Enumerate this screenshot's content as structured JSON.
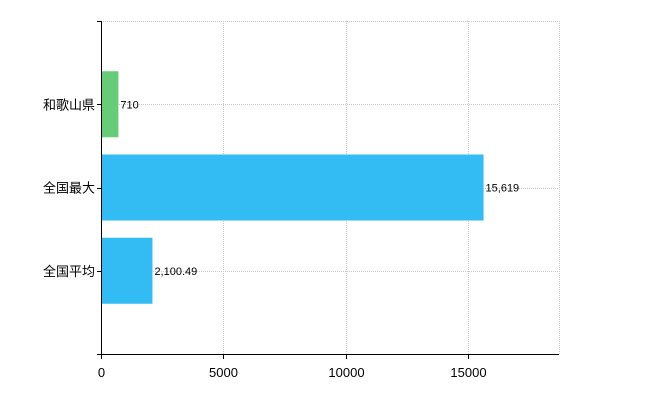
{
  "chart_data": {
    "type": "bar",
    "orientation": "horizontal",
    "categories": [
      "和歌山県",
      "全国最大",
      "全国平均"
    ],
    "values": [
      710,
      15619,
      2100.49
    ],
    "value_labels": [
      "710",
      "15,619",
      "2,100.49"
    ],
    "colors": [
      "#66cc77",
      "#33bbf4",
      "#33bbf4"
    ],
    "xlim": [
      0,
      18700
    ],
    "xticks": [
      0,
      5000,
      10000,
      15000
    ],
    "xtick_labels": [
      "0",
      "5000",
      "10000",
      "15000"
    ],
    "grid": true,
    "legend": "none"
  }
}
